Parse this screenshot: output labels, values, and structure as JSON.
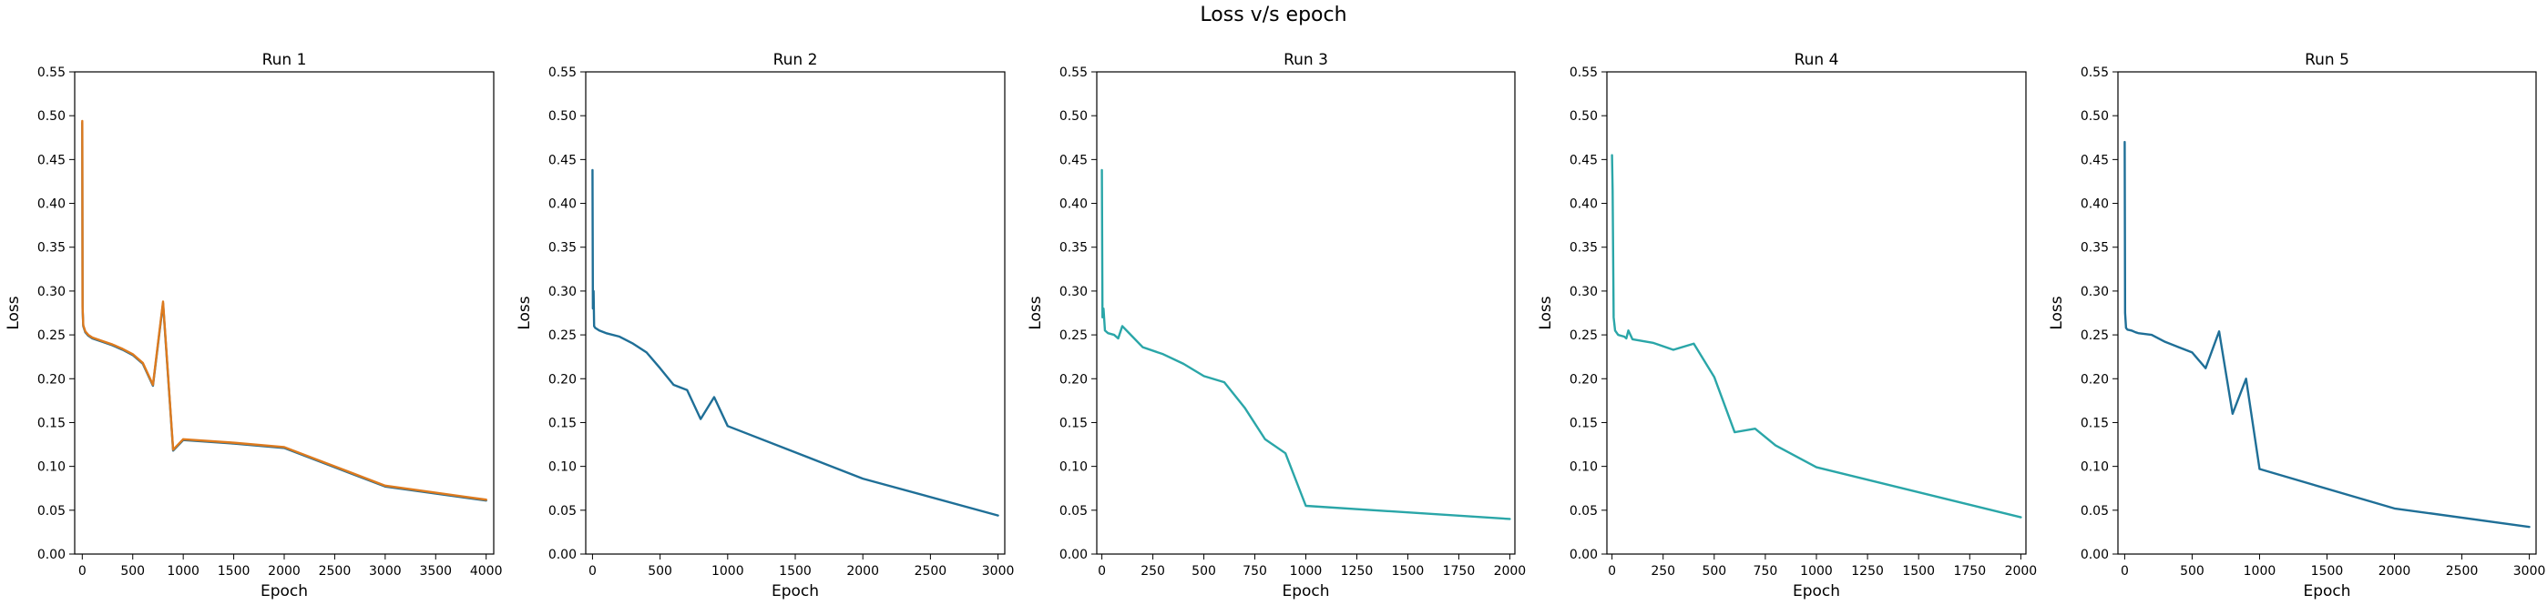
{
  "figure": {
    "title": "Loss v/s epoch"
  },
  "chart_data": [
    {
      "type": "line",
      "title": "Run 1",
      "xlabel": "Epoch",
      "ylabel": "Loss",
      "xlim": [
        -75,
        4075
      ],
      "ylim": [
        0,
        0.55
      ],
      "xticks": [
        0,
        500,
        1000,
        1500,
        2000,
        2500,
        3000,
        3500,
        4000
      ],
      "yticks": [
        0.0,
        0.05,
        0.1,
        0.15,
        0.2,
        0.25,
        0.3,
        0.35,
        0.4,
        0.45,
        0.5,
        0.55
      ],
      "grid": false,
      "series": [
        {
          "color": "#2a6d8f",
          "x": [
            0,
            3,
            10,
            30,
            60,
            100,
            200,
            300,
            400,
            500,
            600,
            700,
            800,
            900,
            1000,
            1500,
            2000,
            3000,
            4000
          ],
          "y": [
            0.492,
            0.28,
            0.26,
            0.253,
            0.249,
            0.246,
            0.242,
            0.238,
            0.233,
            0.227,
            0.217,
            0.192,
            0.286,
            0.118,
            0.13,
            0.126,
            0.121,
            0.077,
            0.061
          ]
        },
        {
          "color": "#dd7a1e",
          "x": [
            0,
            3,
            10,
            30,
            60,
            100,
            200,
            300,
            400,
            500,
            600,
            700,
            800,
            900,
            1000,
            1500,
            2000,
            3000,
            4000
          ],
          "y": [
            0.494,
            0.282,
            0.261,
            0.254,
            0.25,
            0.247,
            0.243,
            0.239,
            0.234,
            0.228,
            0.218,
            0.193,
            0.288,
            0.119,
            0.131,
            0.127,
            0.122,
            0.078,
            0.062
          ]
        }
      ]
    },
    {
      "type": "line",
      "title": "Run 2",
      "xlabel": "Epoch",
      "ylabel": "Loss",
      "xlim": [
        -50,
        3050
      ],
      "ylim": [
        0,
        0.55
      ],
      "xticks": [
        0,
        500,
        1000,
        1500,
        2000,
        2500,
        3000
      ],
      "yticks": [
        0.0,
        0.05,
        0.1,
        0.15,
        0.2,
        0.25,
        0.3,
        0.35,
        0.4,
        0.45,
        0.5,
        0.55
      ],
      "grid": false,
      "series": [
        {
          "color": "#1f6f97",
          "x": [
            0,
            3,
            8,
            12,
            20,
            50,
            100,
            200,
            300,
            400,
            500,
            600,
            700,
            800,
            900,
            1000,
            2000,
            3000
          ],
          "y": [
            0.438,
            0.28,
            0.3,
            0.26,
            0.258,
            0.255,
            0.252,
            0.248,
            0.24,
            0.23,
            0.212,
            0.193,
            0.187,
            0.154,
            0.179,
            0.146,
            0.086,
            0.044
          ]
        }
      ]
    },
    {
      "type": "line",
      "title": "Run 3",
      "xlabel": "Epoch",
      "ylabel": "Loss",
      "xlim": [
        -25,
        2025
      ],
      "ylim": [
        0,
        0.55
      ],
      "xticks": [
        0,
        250,
        500,
        750,
        1000,
        1250,
        1500,
        1750,
        2000
      ],
      "yticks": [
        0.0,
        0.05,
        0.1,
        0.15,
        0.2,
        0.25,
        0.3,
        0.35,
        0.4,
        0.45,
        0.5,
        0.55
      ],
      "grid": false,
      "series": [
        {
          "color": "#2aa6a8",
          "x": [
            0,
            3,
            8,
            15,
            30,
            60,
            80,
            100,
            150,
            200,
            300,
            400,
            500,
            600,
            700,
            800,
            900,
            1000,
            2000
          ],
          "y": [
            0.438,
            0.27,
            0.28,
            0.255,
            0.252,
            0.25,
            0.246,
            0.26,
            0.248,
            0.236,
            0.228,
            0.217,
            0.203,
            0.196,
            0.167,
            0.131,
            0.115,
            0.055,
            0.04
          ]
        }
      ]
    },
    {
      "type": "line",
      "title": "Run 4",
      "xlabel": "Epoch",
      "ylabel": "Loss",
      "xlim": [
        -25,
        2025
      ],
      "ylim": [
        0,
        0.55
      ],
      "xticks": [
        0,
        250,
        500,
        750,
        1000,
        1250,
        1500,
        1750,
        2000
      ],
      "yticks": [
        0.0,
        0.05,
        0.1,
        0.15,
        0.2,
        0.25,
        0.3,
        0.35,
        0.4,
        0.45,
        0.5,
        0.55
      ],
      "grid": false,
      "series": [
        {
          "color": "#2aa6a8",
          "x": [
            0,
            3,
            8,
            15,
            30,
            60,
            70,
            80,
            100,
            200,
            300,
            400,
            500,
            600,
            700,
            800,
            1000,
            2000
          ],
          "y": [
            0.455,
            0.415,
            0.27,
            0.255,
            0.25,
            0.248,
            0.246,
            0.255,
            0.245,
            0.241,
            0.233,
            0.24,
            0.202,
            0.139,
            0.143,
            0.124,
            0.099,
            0.042
          ]
        }
      ]
    },
    {
      "type": "line",
      "title": "Run 5",
      "xlabel": "Epoch",
      "ylabel": "Loss",
      "xlim": [
        -50,
        3050
      ],
      "ylim": [
        0,
        0.55
      ],
      "xticks": [
        0,
        500,
        1000,
        1500,
        2000,
        2500,
        3000
      ],
      "yticks": [
        0.0,
        0.05,
        0.1,
        0.15,
        0.2,
        0.25,
        0.3,
        0.35,
        0.4,
        0.45,
        0.5,
        0.55
      ],
      "grid": false,
      "series": [
        {
          "color": "#1f6f97",
          "x": [
            0,
            3,
            10,
            20,
            50,
            80,
            100,
            200,
            300,
            400,
            500,
            600,
            700,
            800,
            900,
            1000,
            2000,
            3000
          ],
          "y": [
            0.47,
            0.275,
            0.258,
            0.256,
            0.255,
            0.253,
            0.252,
            0.25,
            0.242,
            0.236,
            0.23,
            0.212,
            0.254,
            0.16,
            0.2,
            0.097,
            0.052,
            0.031
          ]
        }
      ]
    }
  ]
}
